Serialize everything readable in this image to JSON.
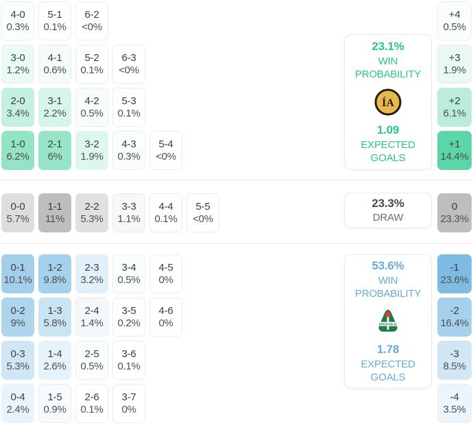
{
  "chart_data": {
    "type": "heatmap",
    "description": "Correct score probability matrix with win/draw probabilities and goal-difference distribution",
    "panels": {
      "home": {
        "win_probability": "23.1%",
        "win_label": [
          "WIN",
          "PROBABILITY"
        ],
        "expected_goals": "1.09",
        "eg_label": [
          "EXPECTED",
          "GOALS"
        ],
        "accent_color": "#2bc87e",
        "logo": {
          "icon": "ia-akranes-crest-icon",
          "monogram": "ÍA",
          "fill": "#e9ba4b",
          "ring": "#221c13"
        }
      },
      "draw": {
        "probability": "23.3%",
        "label": "DRAW",
        "value_color": "#4a4a4a",
        "label_color": "#6f6f6f"
      },
      "away": {
        "win_probability": "53.6%",
        "win_label": [
          "WIN",
          "PROBABILITY"
        ],
        "expected_goals": "1.78",
        "eg_label": [
          "EXPECTED",
          "GOALS"
        ],
        "accent_color": "#66abd9",
        "logo": {
          "icon": "breidablik-crest-icon",
          "banner_text": "BREIDABLIK",
          "fill": "#1e7a46",
          "flame": "#d7402b"
        }
      }
    },
    "score_grids": {
      "home": {
        "heat_base": "#3ecf97",
        "heat_scale": 11,
        "rows": [
          [
            {
              "score": "4-0",
              "pct": "0.3%",
              "p": 0.3
            },
            {
              "score": "5-1",
              "pct": "0.1%",
              "p": 0.1
            },
            {
              "score": "6-2",
              "pct": "<0%",
              "p": 0.02
            }
          ],
          [
            {
              "score": "3-0",
              "pct": "1.2%",
              "p": 1.2
            },
            {
              "score": "4-1",
              "pct": "0.6%",
              "p": 0.6
            },
            {
              "score": "5-2",
              "pct": "0.1%",
              "p": 0.1
            },
            {
              "score": "6-3",
              "pct": "<0%",
              "p": 0.02
            }
          ],
          [
            {
              "score": "2-0",
              "pct": "3.4%",
              "p": 3.4
            },
            {
              "score": "3-1",
              "pct": "2.2%",
              "p": 2.2
            },
            {
              "score": "4-2",
              "pct": "0.5%",
              "p": 0.5
            },
            {
              "score": "5-3",
              "pct": "0.1%",
              "p": 0.1
            }
          ],
          [
            {
              "score": "1-0",
              "pct": "6.2%",
              "p": 6.2
            },
            {
              "score": "2-1",
              "pct": "6%",
              "p": 6.0
            },
            {
              "score": "3-2",
              "pct": "1.9%",
              "p": 1.9
            },
            {
              "score": "4-3",
              "pct": "0.3%",
              "p": 0.3
            },
            {
              "score": "5-4",
              "pct": "<0%",
              "p": 0.02
            }
          ]
        ]
      },
      "draw": {
        "heat_base": "#9a9a9a",
        "heat_scale": 17,
        "rows": [
          [
            {
              "score": "0-0",
              "pct": "5.7%",
              "p": 5.7
            },
            {
              "score": "1-1",
              "pct": "11%",
              "p": 11.0
            },
            {
              "score": "2-2",
              "pct": "5.3%",
              "p": 5.3
            },
            {
              "score": "3-3",
              "pct": "1.1%",
              "p": 1.1
            },
            {
              "score": "4-4",
              "pct": "0.1%",
              "p": 0.1
            },
            {
              "score": "5-5",
              "pct": "<0%",
              "p": 0.02
            }
          ]
        ]
      },
      "away": {
        "heat_base": "#5baadc",
        "heat_scale": 18,
        "rows": [
          [
            {
              "score": "0-1",
              "pct": "10.1%",
              "p": 10.1
            },
            {
              "score": "1-2",
              "pct": "9.8%",
              "p": 9.8
            },
            {
              "score": "2-3",
              "pct": "3.2%",
              "p": 3.2
            },
            {
              "score": "3-4",
              "pct": "0.5%",
              "p": 0.5
            },
            {
              "score": "4-5",
              "pct": "0%",
              "p": 0
            }
          ],
          [
            {
              "score": "0-2",
              "pct": "9%",
              "p": 9.0
            },
            {
              "score": "1-3",
              "pct": "5.8%",
              "p": 5.8
            },
            {
              "score": "2-4",
              "pct": "1.4%",
              "p": 1.4
            },
            {
              "score": "3-5",
              "pct": "0.2%",
              "p": 0.2
            },
            {
              "score": "4-6",
              "pct": "0%",
              "p": 0
            }
          ],
          [
            {
              "score": "0-3",
              "pct": "5.3%",
              "p": 5.3
            },
            {
              "score": "1-4",
              "pct": "2.6%",
              "p": 2.6
            },
            {
              "score": "2-5",
              "pct": "0.5%",
              "p": 0.5
            },
            {
              "score": "3-6",
              "pct": "0.1%",
              "p": 0.1
            }
          ],
          [
            {
              "score": "0-4",
              "pct": "2.4%",
              "p": 2.4
            },
            {
              "score": "1-5",
              "pct": "0.9%",
              "p": 0.9
            },
            {
              "score": "2-6",
              "pct": "0.1%",
              "p": 0.1
            },
            {
              "score": "3-7",
              "pct": "0%",
              "p": 0
            }
          ]
        ]
      }
    },
    "goal_diff": {
      "plus": {
        "heat_base": "#3ecf97",
        "heat_scale": 17,
        "cells": [
          {
            "label": "+4",
            "pct": "0.5%",
            "p": 0.5
          },
          {
            "label": "+3",
            "pct": "1.9%",
            "p": 1.9
          },
          {
            "label": "+2",
            "pct": "6.1%",
            "p": 6.1
          },
          {
            "label": "+1",
            "pct": "14.4%",
            "p": 14.4
          }
        ]
      },
      "zero": {
        "heat_base": "#9a9a9a",
        "heat_scale": 36,
        "cells": [
          {
            "label": "0",
            "pct": "23.3%",
            "p": 23.3
          }
        ]
      },
      "minus": {
        "heat_base": "#5baadc",
        "heat_scale": 30,
        "cells": [
          {
            "label": "-1",
            "pct": "23.6%",
            "p": 23.6
          },
          {
            "label": "-2",
            "pct": "16.4%",
            "p": 16.4
          },
          {
            "label": "-3",
            "pct": "8.5%",
            "p": 8.5
          },
          {
            "label": "-4",
            "pct": "3.5%",
            "p": 3.5
          }
        ]
      }
    }
  },
  "theme": {
    "background": "#ffffff",
    "divider": "#e8e8e8",
    "cell_border": "#ececec",
    "score_text": "#3d3d3d",
    "pct_text": "#4f4f4f",
    "home_accent": "#2bc87e",
    "away_accent": "#66abd9",
    "draw_accent": "#4a4a4a"
  }
}
